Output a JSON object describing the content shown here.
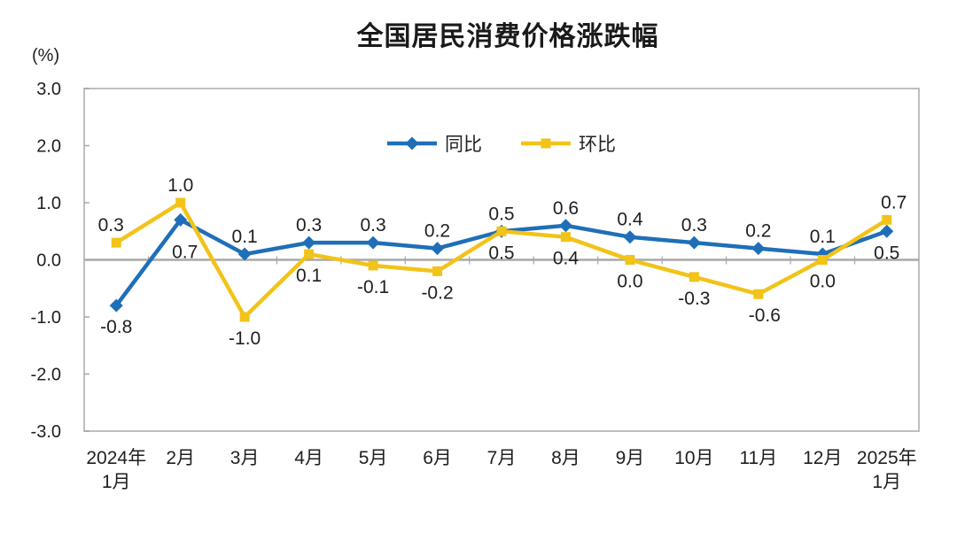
{
  "title": "全国居民消费价格涨跌幅",
  "unit_label": "(%)",
  "legend": {
    "items": [
      {
        "label": "同比",
        "color": "#1F6FB8",
        "marker": "diamond"
      },
      {
        "label": "环比",
        "color": "#F2C318",
        "marker": "square"
      }
    ]
  },
  "chart_data": {
    "type": "line",
    "title": "全国居民消费价格涨跌幅",
    "ylabel": "(%)",
    "ylim": [
      -3.0,
      3.0
    ],
    "y_ticks": [
      3.0,
      2.0,
      1.0,
      0.0,
      -1.0,
      -2.0,
      -3.0
    ],
    "grid": false,
    "legend_position": "top-center-inside",
    "categories": [
      "2024年1月",
      "2月",
      "3月",
      "4月",
      "5月",
      "6月",
      "7月",
      "8月",
      "9月",
      "10月",
      "11月",
      "12月",
      "2025年1月"
    ],
    "series": [
      {
        "name": "同比",
        "color": "#1F6FB8",
        "marker": "diamond",
        "values": [
          -0.8,
          0.7,
          0.1,
          0.3,
          0.3,
          0.2,
          0.5,
          0.6,
          0.4,
          0.3,
          0.2,
          0.1,
          0.5
        ],
        "label_positions": [
          "below",
          "below",
          "above",
          "above",
          "above",
          "above",
          "above",
          "above",
          "above",
          "above",
          "above",
          "above",
          "below"
        ],
        "label_offsets": {
          "1": {
            "dx": 5,
            "dy": 12
          }
        }
      },
      {
        "name": "环比",
        "color": "#F2C318",
        "marker": "square",
        "values": [
          0.3,
          1.0,
          -1.0,
          0.1,
          -0.1,
          -0.2,
          0.5,
          0.4,
          0.0,
          -0.3,
          -0.6,
          0.0,
          0.7
        ],
        "label_positions": [
          "above",
          "above",
          "below",
          "below",
          "below",
          "below",
          "below",
          "below",
          "below",
          "below",
          "below",
          "below",
          "above"
        ],
        "label_offsets": {
          "0": {
            "dx": -6
          },
          "10": {
            "dx": 7
          },
          "12": {
            "dx": 8
          }
        }
      }
    ],
    "axis_color": "#a8a8a8",
    "frame_color": "#bfbfbf",
    "label_color": "#1f1f1f"
  }
}
